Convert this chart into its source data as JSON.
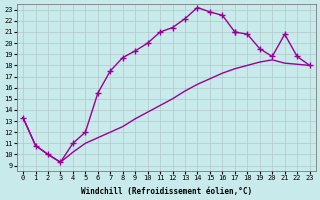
{
  "xlabel": "Windchill (Refroidissement éolien,°C)",
  "ylabel_ticks": [
    9,
    10,
    11,
    12,
    13,
    14,
    15,
    16,
    17,
    18,
    19,
    20,
    21,
    22,
    23
  ],
  "xticks": [
    0,
    1,
    2,
    3,
    4,
    5,
    6,
    7,
    8,
    9,
    10,
    11,
    12,
    13,
    14,
    15,
    16,
    17,
    18,
    19,
    20,
    21,
    22,
    23
  ],
  "xlim": [
    -0.5,
    23.5
  ],
  "ylim": [
    8.5,
    23.5
  ],
  "background_color": "#c8eaea",
  "grid_color": "#b0c8c8",
  "line_color": "#990099",
  "line_width": 1.0,
  "upper_x": [
    0,
    1,
    2,
    3,
    4,
    5,
    6,
    7,
    8,
    9,
    10,
    11,
    12,
    13,
    14,
    15,
    16,
    17
  ],
  "upper_y": [
    13.3,
    10.8,
    10.0,
    9.3,
    11.0,
    12.0,
    15.5,
    17.5,
    18.7,
    19.3,
    20.0,
    21.0,
    21.4,
    22.2,
    23.2,
    22.8,
    22.5,
    21.0
  ],
  "right_x": [
    17,
    18,
    19,
    20,
    21,
    22,
    23
  ],
  "right_y": [
    21.0,
    20.8,
    19.5,
    18.8,
    20.8,
    18.8,
    18.0
  ],
  "lower_x": [
    0,
    1,
    2,
    3,
    4,
    5,
    6,
    7,
    8,
    9,
    10,
    11,
    12,
    13,
    14,
    15,
    16,
    17,
    18,
    19,
    20,
    21,
    22,
    23
  ],
  "lower_y": [
    13.3,
    10.8,
    10.0,
    9.3,
    10.2,
    11.0,
    11.5,
    12.0,
    12.5,
    13.2,
    13.8,
    14.4,
    15.0,
    15.7,
    16.3,
    16.8,
    17.3,
    17.7,
    18.0,
    18.3,
    18.5,
    18.2,
    18.1,
    18.0
  ]
}
